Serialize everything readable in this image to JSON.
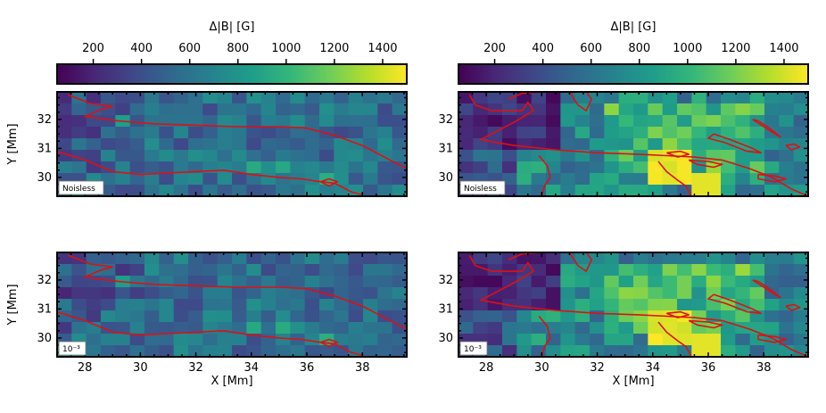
{
  "figure": {
    "colorbar_label": "Δ|B| [G]",
    "colorbar_ticks": [
      200,
      400,
      600,
      800,
      1000,
      1200,
      1400
    ],
    "colorbar_range": [
      50,
      1500
    ],
    "colormap": [
      "#440154",
      "#482878",
      "#3e4989",
      "#31688e",
      "#26828e",
      "#1f9e89",
      "#35b779",
      "#6ece58",
      "#b5de2b",
      "#fde725"
    ],
    "contour_color": "#dd1111"
  },
  "chart_data": [
    {
      "type": "heatmap",
      "panel": "top-left",
      "annotation": "Noisless",
      "xlabel": "",
      "ylabel": "Y [Mm]",
      "xlim": [
        27,
        39.6
      ],
      "ylim": [
        29.35,
        32.95
      ],
      "xticks": [
        28,
        30,
        32,
        34,
        36,
        38
      ],
      "yticks": [
        30,
        31,
        32
      ],
      "level": "low"
    },
    {
      "type": "heatmap",
      "panel": "top-right",
      "annotation": "Noisless",
      "xlabel": "",
      "ylabel": "",
      "xlim": [
        27,
        39.6
      ],
      "ylim": [
        29.35,
        32.95
      ],
      "xticks": [
        28,
        30,
        32,
        34,
        36,
        38
      ],
      "yticks": [
        30,
        31,
        32
      ],
      "level": "high"
    },
    {
      "type": "heatmap",
      "panel": "bottom-left",
      "annotation": "10⁻³",
      "xlabel": "X [Mm]",
      "ylabel": "Y [Mm]",
      "xlim": [
        27,
        39.6
      ],
      "ylim": [
        29.35,
        32.95
      ],
      "xticks": [
        28,
        30,
        32,
        34,
        36,
        38
      ],
      "yticks": [
        30,
        31,
        32
      ],
      "level": "low"
    },
    {
      "type": "heatmap",
      "panel": "bottom-right",
      "annotation": "10⁻³",
      "xlabel": "X [Mm]",
      "ylabel": "",
      "xlim": [
        27,
        39.6
      ],
      "ylim": [
        29.35,
        32.95
      ],
      "xticks": [
        28,
        30,
        32,
        34,
        36,
        38
      ],
      "yticks": [
        30,
        31,
        32
      ],
      "level": "high"
    }
  ],
  "contours": {
    "left": [
      [
        [
          27.4,
          32.85
        ],
        [
          28.2,
          32.55
        ],
        [
          29.0,
          32.45
        ],
        [
          28.6,
          32.35
        ],
        [
          28.0,
          32.1
        ],
        [
          29.2,
          31.95
        ],
        [
          30.5,
          31.85
        ],
        [
          32.0,
          31.8
        ],
        [
          33.5,
          31.75
        ],
        [
          35.0,
          31.75
        ],
        [
          36.0,
          31.7
        ],
        [
          37.0,
          31.45
        ],
        [
          38.0,
          31.1
        ],
        [
          39.0,
          30.6
        ],
        [
          39.6,
          30.3
        ]
      ],
      [
        [
          27.0,
          30.9
        ],
        [
          28.0,
          30.6
        ],
        [
          29.0,
          30.2
        ],
        [
          30.0,
          30.1
        ],
        [
          31.0,
          30.15
        ],
        [
          32.0,
          30.2
        ],
        [
          33.0,
          30.25
        ],
        [
          34.0,
          30.1
        ],
        [
          35.0,
          30.0
        ],
        [
          35.8,
          29.95
        ],
        [
          36.5,
          29.85
        ],
        [
          37.0,
          29.8
        ],
        [
          37.6,
          29.5
        ],
        [
          38.0,
          29.4
        ]
      ],
      [
        [
          36.5,
          29.85
        ],
        [
          36.8,
          29.95
        ],
        [
          37.1,
          29.85
        ],
        [
          36.8,
          29.7
        ],
        [
          36.5,
          29.85
        ]
      ]
    ],
    "right": [
      [
        [
          27.4,
          32.85
        ],
        [
          27.6,
          32.5
        ],
        [
          28.2,
          32.3
        ],
        [
          29.3,
          32.3
        ],
        [
          29.5,
          32.6
        ],
        [
          29.7,
          32.3
        ],
        [
          29.0,
          31.9
        ],
        [
          28.2,
          31.5
        ],
        [
          27.8,
          31.3
        ],
        [
          29.0,
          31.1
        ],
        [
          30.5,
          30.95
        ],
        [
          32.0,
          30.85
        ],
        [
          33.5,
          30.8
        ],
        [
          34.5,
          30.75
        ],
        [
          35.5,
          30.7
        ],
        [
          36.5,
          30.6
        ],
        [
          37.5,
          30.3
        ],
        [
          38.3,
          30.0
        ],
        [
          39.0,
          29.6
        ],
        [
          39.6,
          29.35
        ]
      ],
      [
        [
          28.8,
          32.7
        ],
        [
          29.3,
          32.9
        ],
        [
          30.0,
          32.95
        ]
      ],
      [
        [
          31.0,
          32.95
        ],
        [
          31.3,
          32.5
        ],
        [
          31.6,
          32.3
        ],
        [
          31.8,
          32.7
        ],
        [
          31.6,
          32.95
        ]
      ],
      [
        [
          36.2,
          31.5
        ],
        [
          36.8,
          31.3
        ],
        [
          37.6,
          31.0
        ],
        [
          37.9,
          30.85
        ],
        [
          37.4,
          30.9
        ],
        [
          36.6,
          31.2
        ],
        [
          36.0,
          31.35
        ],
        [
          36.2,
          31.5
        ]
      ],
      [
        [
          37.6,
          32.0
        ],
        [
          38.0,
          31.75
        ],
        [
          38.4,
          31.5
        ],
        [
          38.6,
          31.4
        ],
        [
          38.2,
          31.7
        ],
        [
          37.8,
          31.95
        ],
        [
          37.6,
          32.0
        ]
      ],
      [
        [
          38.8,
          31.1
        ],
        [
          39.1,
          31.15
        ],
        [
          39.3,
          31.05
        ],
        [
          39.0,
          30.95
        ],
        [
          38.8,
          31.1
        ]
      ],
      [
        [
          34.5,
          30.85
        ],
        [
          35.0,
          30.9
        ],
        [
          35.3,
          30.8
        ],
        [
          34.9,
          30.7
        ],
        [
          34.5,
          30.85
        ]
      ],
      [
        [
          35.3,
          30.6
        ],
        [
          36.0,
          30.55
        ],
        [
          36.5,
          30.45
        ],
        [
          36.2,
          30.35
        ],
        [
          35.6,
          30.45
        ],
        [
          35.3,
          30.6
        ]
      ],
      [
        [
          37.8,
          30.1
        ],
        [
          38.4,
          30.05
        ],
        [
          38.8,
          29.95
        ],
        [
          38.4,
          29.85
        ],
        [
          37.8,
          29.95
        ],
        [
          37.8,
          30.1
        ]
      ],
      [
        [
          34.2,
          30.55
        ],
        [
          34.5,
          30.2
        ],
        [
          34.9,
          29.9
        ],
        [
          35.2,
          29.7
        ],
        [
          35.4,
          29.35
        ]
      ],
      [
        [
          29.9,
          30.75
        ],
        [
          30.2,
          30.4
        ],
        [
          30.3,
          30.0
        ],
        [
          30.1,
          29.7
        ],
        [
          30.0,
          29.35
        ]
      ]
    ]
  }
}
